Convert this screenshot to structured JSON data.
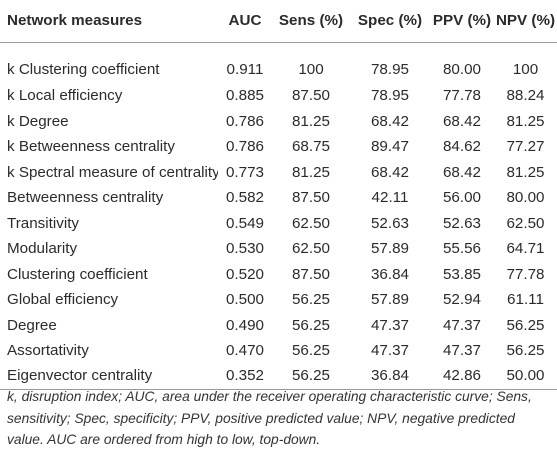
{
  "table": {
    "headers": [
      "Network measures",
      "AUC",
      "Sens (%)",
      "Spec (%)",
      "PPV (%)",
      "NPV (%)"
    ],
    "rows": [
      [
        "k Clustering coefficient",
        "0.911",
        "100",
        "78.95",
        "80.00",
        "100"
      ],
      [
        "k Local efficiency",
        "0.885",
        "87.50",
        "78.95",
        "77.78",
        "88.24"
      ],
      [
        "k Degree",
        "0.786",
        "81.25",
        "68.42",
        "68.42",
        "81.25"
      ],
      [
        "k Betweenness centrality",
        "0.786",
        "68.75",
        "89.47",
        "84.62",
        "77.27"
      ],
      [
        "k Spectral measure of centrality",
        "0.773",
        "81.25",
        "68.42",
        "68.42",
        "81.25"
      ],
      [
        "Betweenness centrality",
        "0.582",
        "87.50",
        "42.11",
        "56.00",
        "80.00"
      ],
      [
        "Transitivity",
        "0.549",
        "62.50",
        "52.63",
        "52.63",
        "62.50"
      ],
      [
        "Modularity",
        "0.530",
        "62.50",
        "57.89",
        "55.56",
        "64.71"
      ],
      [
        "Clustering coefficient",
        "0.520",
        "87.50",
        "36.84",
        "53.85",
        "77.78"
      ],
      [
        "Global efficiency",
        "0.500",
        "56.25",
        "57.89",
        "52.94",
        "61.11"
      ],
      [
        "Degree",
        "0.490",
        "56.25",
        "47.37",
        "47.37",
        "56.25"
      ],
      [
        "Assortativity",
        "0.470",
        "56.25",
        "47.37",
        "47.37",
        "56.25"
      ],
      [
        "Eigenvector centrality",
        "0.352",
        "56.25",
        "36.84",
        "42.86",
        "50.00"
      ]
    ]
  },
  "footnote": "k, disruption index; AUC, area under the receiver operating characteristic curve; Sens, sensitivity; Spec, specificity; PPV, positive predicted value; NPV, negative predicted value. AUC are ordered from high to low, top-down."
}
